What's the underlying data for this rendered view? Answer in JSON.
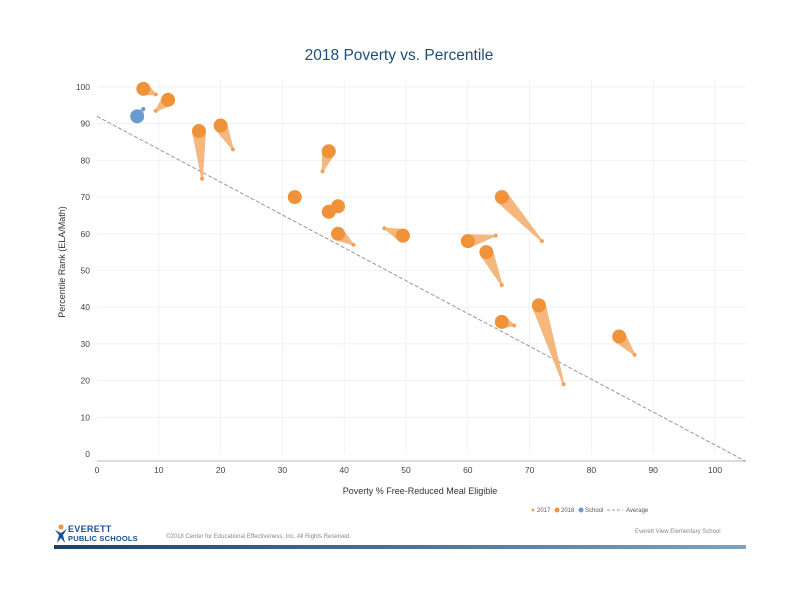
{
  "colors": {
    "y2017": "#f2a35a",
    "y2018": "#f0923a",
    "school": "#6a9bd0",
    "average": "#999999",
    "title": "#1f4e79",
    "wedge": "#f2aa66"
  },
  "chart_data": {
    "type": "scatter",
    "title": "2018 Poverty vs. Percentile",
    "xlabel": "Poverty % Free-Reduced Meal Eligible",
    "ylabel": "Percentile Rank (ELA/Math)",
    "xlim": [
      0,
      105
    ],
    "ylim": [
      0,
      100
    ],
    "xticks": [
      0,
      10,
      20,
      30,
      40,
      50,
      60,
      70,
      80,
      90,
      100
    ],
    "yticks": [
      0,
      10,
      20,
      30,
      40,
      50,
      60,
      70,
      80,
      90,
      100
    ],
    "grid": true,
    "legend": [
      "2017",
      "2018",
      "School",
      "Average"
    ],
    "legend_position": "bottom-right",
    "average_line": {
      "x": [
        0,
        105
      ],
      "y": [
        92,
        -2
      ]
    },
    "schools": [
      {
        "x2017": 9.5,
        "y2017": 98,
        "x2018": 7.5,
        "y2018": 99.5
      },
      {
        "x2017": 9.5,
        "y2017": 93.5,
        "x2018": 11.5,
        "y2018": 96.5
      },
      {
        "x2017": 17,
        "y2017": 75,
        "x2018": 16.5,
        "y2018": 88
      },
      {
        "x2017": 22,
        "y2017": 83,
        "x2018": 20,
        "y2018": 89.5
      },
      {
        "x2017": 32,
        "y2017": 70,
        "x2018": 32,
        "y2018": 70
      },
      {
        "x2017": 36.5,
        "y2017": 77,
        "x2018": 37.5,
        "y2018": 82.5
      },
      {
        "x2017": 37.5,
        "y2017": 66,
        "x2018": 37.5,
        "y2018": 66
      },
      {
        "x2017": 39,
        "y2017": 67.5,
        "x2018": 39,
        "y2018": 67.5
      },
      {
        "x2017": 41.5,
        "y2017": 57,
        "x2018": 39,
        "y2018": 60
      },
      {
        "x2017": 46.5,
        "y2017": 61.5,
        "x2018": 49.5,
        "y2018": 59.5
      },
      {
        "x2017": 64.5,
        "y2017": 59.5,
        "x2018": 60,
        "y2018": 58
      },
      {
        "x2017": 65.5,
        "y2017": 46,
        "x2018": 63,
        "y2018": 55
      },
      {
        "x2017": 72,
        "y2017": 58,
        "x2018": 65.5,
        "y2018": 70
      },
      {
        "x2017": 67.5,
        "y2017": 35,
        "x2018": 65.5,
        "y2018": 36
      },
      {
        "x2017": 75.5,
        "y2017": 19,
        "x2018": 71.5,
        "y2018": 40.5
      },
      {
        "x2017": 87,
        "y2017": 27,
        "x2018": 84.5,
        "y2018": 32
      }
    ],
    "highlight_school": {
      "x2017": 7.5,
      "y2017": 94,
      "x2018": 6.5,
      "y2018": 92
    }
  },
  "footer": {
    "logo_line1": "EVERETT",
    "logo_line2": "PUBLIC SCHOOLS",
    "copyright": "©2018 Center for Educational Effectiveness, Inc. All Rights Reserved.",
    "school_name": "Everett View Elementary School"
  }
}
